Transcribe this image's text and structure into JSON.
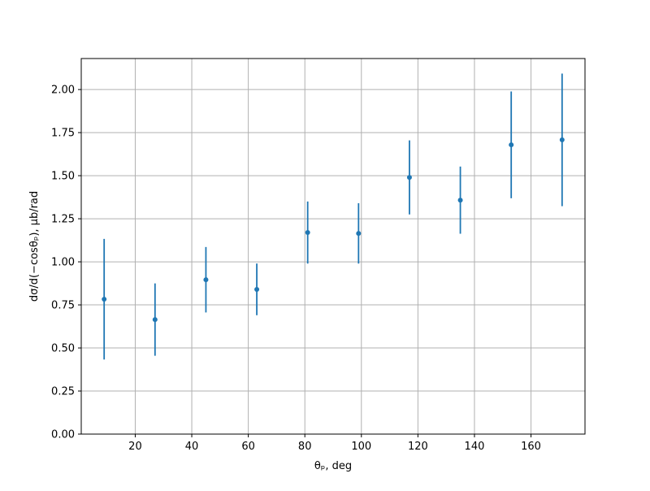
{
  "chart_data": {
    "type": "errorbar",
    "x_label": "θₚ, deg",
    "y_label": "dσ/d(−cosθₚ), μb/rad",
    "x": [
      9,
      27,
      45,
      63,
      81,
      99,
      117,
      135,
      153,
      171
    ],
    "values": [
      0.783,
      0.665,
      0.896,
      0.84,
      1.17,
      1.165,
      1.49,
      1.358,
      1.679,
      1.708
    ],
    "errors": [
      0.35,
      0.21,
      0.19,
      0.15,
      0.18,
      0.175,
      0.215,
      0.195,
      0.31,
      0.385
    ],
    "color": "#1f77b4",
    "xlim": [
      0.9,
      179.1
    ],
    "ylim": [
      0,
      2.18
    ],
    "xticks": [
      20,
      40,
      60,
      80,
      100,
      120,
      140,
      160
    ],
    "yticks": [
      {
        "value": 0,
        "label": "0.00"
      },
      {
        "value": 0.25,
        "label": "0.25"
      },
      {
        "value": 0.5,
        "label": "0.50"
      },
      {
        "value": 0.75,
        "label": "0.75"
      },
      {
        "value": 1,
        "label": "1.00"
      },
      {
        "value": 1.25,
        "label": "1.25"
      },
      {
        "value": 1.5,
        "label": "1.50"
      },
      {
        "value": 1.75,
        "label": "1.75"
      },
      {
        "value": 2,
        "label": "2.00"
      }
    ],
    "grid": true
  }
}
